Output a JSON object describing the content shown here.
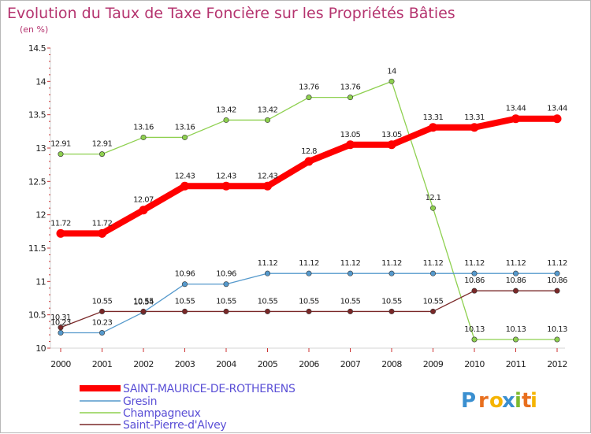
{
  "chart_data": {
    "type": "line",
    "title": "Evolution du Taux de Taxe Foncière sur les Propriétés Bâties",
    "subtitle": "(en %)",
    "x": [
      "2000",
      "2001",
      "2002",
      "2003",
      "2004",
      "2005",
      "2006",
      "2007",
      "2008",
      "2009",
      "2010",
      "2011",
      "2012"
    ],
    "yticks": [
      "10",
      "10.5",
      "11",
      "11.5",
      "12",
      "12.5",
      "13",
      "13.5",
      "14",
      "14.5"
    ],
    "ylim": [
      10,
      14.5
    ],
    "grid": false,
    "legend_position": "bottom-left",
    "series": [
      {
        "name": "SAINT-MAURICE-DE-ROTHERENS",
        "color": "#ff0000",
        "values": [
          11.72,
          11.72,
          12.07,
          12.43,
          12.43,
          12.43,
          12.8,
          13.05,
          13.05,
          13.31,
          13.31,
          13.44,
          13.44
        ]
      },
      {
        "name": "Gresin",
        "color": "#5599cc",
        "values": [
          10.23,
          10.23,
          10.54,
          10.96,
          10.96,
          11.12,
          11.12,
          11.12,
          11.12,
          11.12,
          11.12,
          11.12,
          11.12
        ]
      },
      {
        "name": "Champagneux",
        "color": "#8ed04f",
        "values": [
          12.91,
          12.91,
          13.16,
          13.16,
          13.42,
          13.42,
          13.76,
          13.76,
          14,
          12.1,
          10.13,
          10.13,
          10.13
        ]
      },
      {
        "name": "Saint-Pierre-d'Alvey",
        "color": "#7a2828",
        "values": [
          10.31,
          10.55,
          10.55,
          10.55,
          10.55,
          10.55,
          10.55,
          10.55,
          10.55,
          10.55,
          10.86,
          10.86,
          10.86
        ]
      }
    ]
  },
  "logo": {
    "text": "Proxiti",
    "letters": [
      "P",
      "r",
      "o",
      "x",
      "i",
      "t",
      "i"
    ],
    "colors": [
      "#3a8fd0",
      "#e86f1e",
      "#f5b400",
      "#3a8fd0",
      "#7dbb2e",
      "#e86f1e",
      "#f5b400"
    ]
  }
}
